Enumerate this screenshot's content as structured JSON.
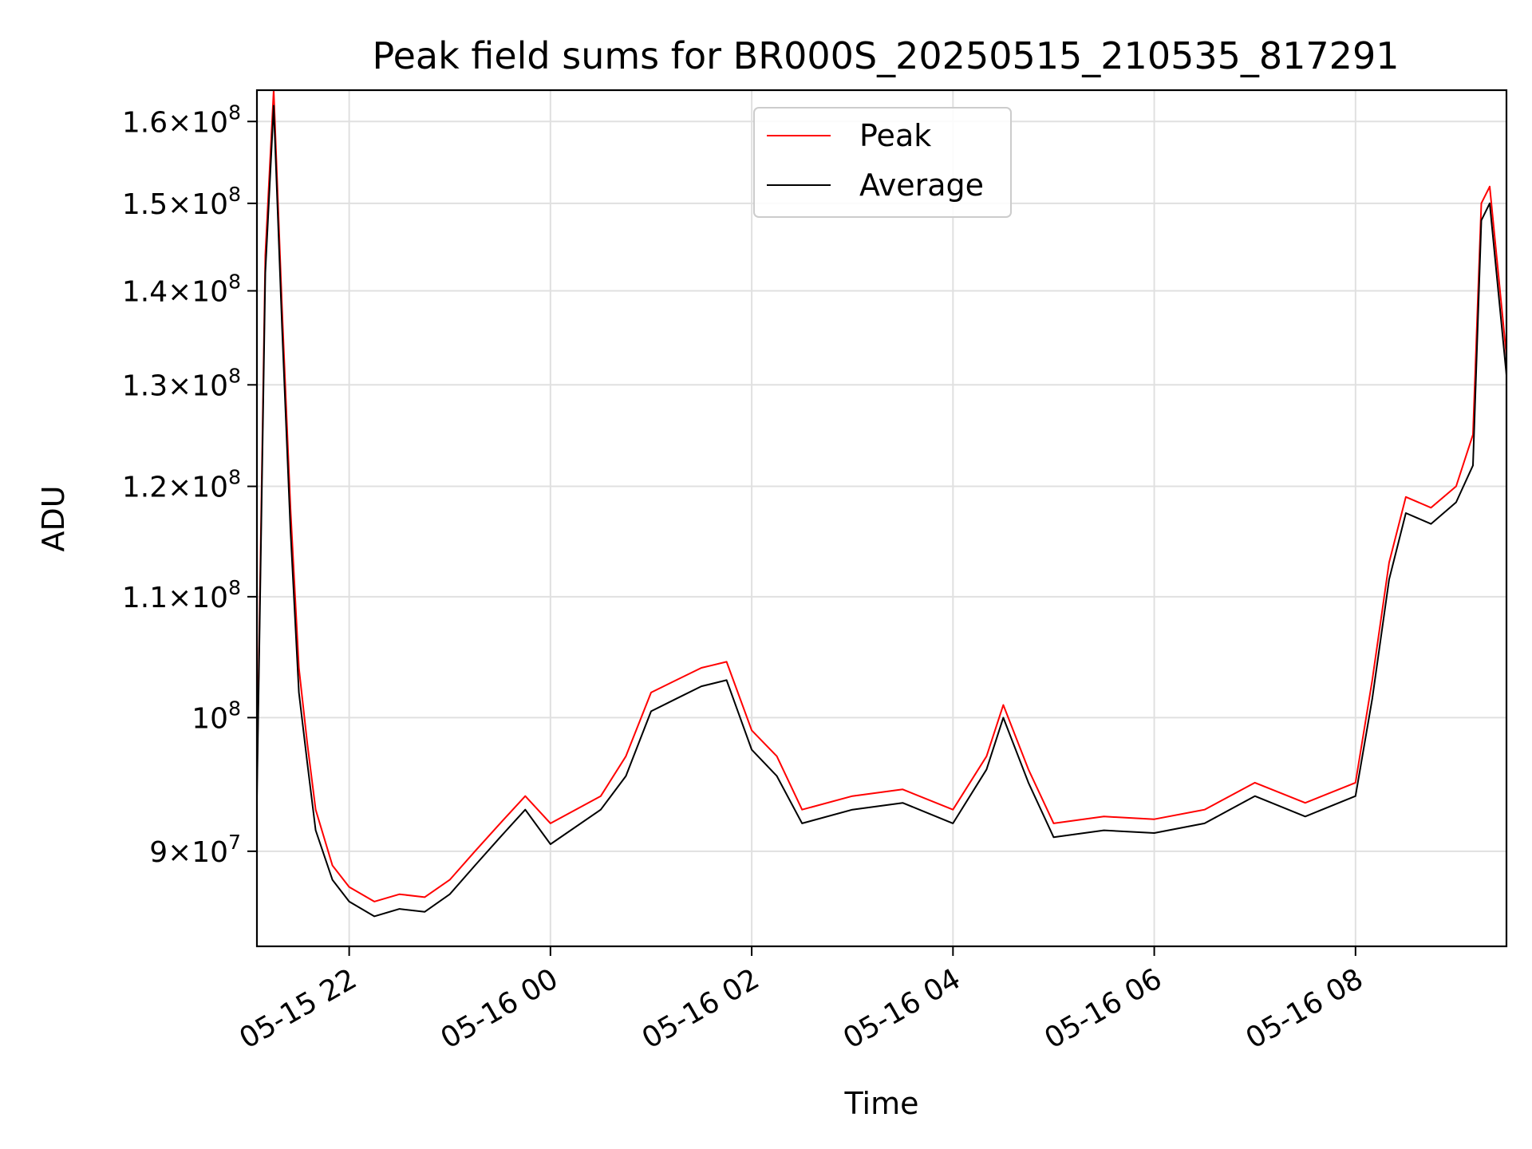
{
  "chart_data": {
    "type": "line",
    "title": "Peak field sums for BR000S_20250515_210535_817291",
    "xlabel": "Time",
    "ylabel": "ADU",
    "y_scale": "log",
    "ylim": [
      83500000,
      164000000
    ],
    "xlim": [
      "2025-05-15 21:05",
      "2025-05-16 09:30"
    ],
    "grid": true,
    "legend_position": "upper center",
    "x_ticks": [
      {
        "value": "2025-05-15 22:00",
        "label": "05-15 22"
      },
      {
        "value": "2025-05-16 00:00",
        "label": "05-16 00"
      },
      {
        "value": "2025-05-16 02:00",
        "label": "05-16 02"
      },
      {
        "value": "2025-05-16 04:00",
        "label": "05-16 04"
      },
      {
        "value": "2025-05-16 06:00",
        "label": "05-16 06"
      },
      {
        "value": "2025-05-16 08:00",
        "label": "05-16 08"
      }
    ],
    "y_ticks": [
      {
        "value": 90000000,
        "mantissa": "9",
        "exp": "7"
      },
      {
        "value": 100000000,
        "mantissa": "",
        "exp": "8"
      },
      {
        "value": 110000000,
        "mantissa": "1.1",
        "exp": "8"
      },
      {
        "value": 120000000,
        "mantissa": "1.2",
        "exp": "8"
      },
      {
        "value": 130000000,
        "mantissa": "1.3",
        "exp": "8"
      },
      {
        "value": 140000000,
        "mantissa": "1.4",
        "exp": "8"
      },
      {
        "value": 150000000,
        "mantissa": "1.5",
        "exp": "8"
      },
      {
        "value": 160000000,
        "mantissa": "1.6",
        "exp": "8"
      }
    ],
    "series": [
      {
        "name": "Peak",
        "color": "#ff0000",
        "x": [
          "2025-05-15 21:05",
          "2025-05-15 21:10",
          "2025-05-15 21:15",
          "2025-05-15 21:20",
          "2025-05-15 21:25",
          "2025-05-15 21:30",
          "2025-05-15 21:35",
          "2025-05-15 21:40",
          "2025-05-15 21:50",
          "2025-05-15 22:00",
          "2025-05-15 22:15",
          "2025-05-15 22:30",
          "2025-05-15 22:45",
          "2025-05-15 23:00",
          "2025-05-15 23:15",
          "2025-05-15 23:30",
          "2025-05-15 23:45",
          "2025-05-16 00:00",
          "2025-05-16 00:30",
          "2025-05-16 00:45",
          "2025-05-16 01:00",
          "2025-05-16 01:15",
          "2025-05-16 01:30",
          "2025-05-16 01:45",
          "2025-05-16 02:00",
          "2025-05-16 02:15",
          "2025-05-16 02:30",
          "2025-05-16 03:00",
          "2025-05-16 03:30",
          "2025-05-16 04:00",
          "2025-05-16 04:20",
          "2025-05-16 04:30",
          "2025-05-16 04:45",
          "2025-05-16 05:00",
          "2025-05-16 05:30",
          "2025-05-16 06:00",
          "2025-05-16 06:30",
          "2025-05-16 07:00",
          "2025-05-16 07:30",
          "2025-05-16 08:00",
          "2025-05-16 08:10",
          "2025-05-16 08:20",
          "2025-05-16 08:30",
          "2025-05-16 08:45",
          "2025-05-16 09:00",
          "2025-05-16 09:10",
          "2025-05-16 09:15",
          "2025-05-16 09:20",
          "2025-05-16 09:30"
        ],
        "y": [
          95000000,
          144000000,
          164000000,
          138000000,
          118000000,
          104000000,
          98000000,
          93000000,
          89000000,
          87500000,
          86500000,
          87000000,
          86800000,
          88000000,
          90000000,
          92000000,
          94000000,
          92000000,
          94000000,
          97000000,
          102000000,
          103000000,
          104000000,
          104500000,
          99000000,
          97000000,
          93000000,
          94000000,
          94500000,
          93000000,
          97000000,
          101000000,
          96000000,
          92000000,
          92500000,
          92300000,
          93000000,
          95000000,
          93500000,
          95000000,
          103000000,
          113000000,
          119000000,
          118000000,
          120000000,
          125000000,
          150000000,
          152000000,
          133000000
        ]
      },
      {
        "name": "Average",
        "color": "#000000",
        "x": [
          "2025-05-15 21:05",
          "2025-05-15 21:10",
          "2025-05-15 21:15",
          "2025-05-15 21:20",
          "2025-05-15 21:25",
          "2025-05-15 21:30",
          "2025-05-15 21:35",
          "2025-05-15 21:40",
          "2025-05-15 21:50",
          "2025-05-15 22:00",
          "2025-05-15 22:15",
          "2025-05-15 22:30",
          "2025-05-15 22:45",
          "2025-05-15 23:00",
          "2025-05-15 23:15",
          "2025-05-15 23:30",
          "2025-05-15 23:45",
          "2025-05-16 00:00",
          "2025-05-16 00:30",
          "2025-05-16 00:45",
          "2025-05-16 01:00",
          "2025-05-16 01:15",
          "2025-05-16 01:30",
          "2025-05-16 01:45",
          "2025-05-16 02:00",
          "2025-05-16 02:15",
          "2025-05-16 02:30",
          "2025-05-16 03:00",
          "2025-05-16 03:30",
          "2025-05-16 04:00",
          "2025-05-16 04:20",
          "2025-05-16 04:30",
          "2025-05-16 04:45",
          "2025-05-16 05:00",
          "2025-05-16 05:30",
          "2025-05-16 06:00",
          "2025-05-16 06:30",
          "2025-05-16 07:00",
          "2025-05-16 07:30",
          "2025-05-16 08:00",
          "2025-05-16 08:10",
          "2025-05-16 08:20",
          "2025-05-16 08:30",
          "2025-05-16 08:45",
          "2025-05-16 09:00",
          "2025-05-16 09:10",
          "2025-05-16 09:15",
          "2025-05-16 09:20",
          "2025-05-16 09:30"
        ],
        "y": [
          94000000,
          142000000,
          162000000,
          136000000,
          116000000,
          102000000,
          96500000,
          91500000,
          88000000,
          86500000,
          85500000,
          86000000,
          85800000,
          87000000,
          89000000,
          91000000,
          93000000,
          90500000,
          93000000,
          95500000,
          100500000,
          101500000,
          102500000,
          103000000,
          97500000,
          95500000,
          92000000,
          93000000,
          93500000,
          92000000,
          96000000,
          100000000,
          95000000,
          91000000,
          91500000,
          91300000,
          92000000,
          94000000,
          92500000,
          94000000,
          101500000,
          111500000,
          117500000,
          116500000,
          118500000,
          122000000,
          148000000,
          150000000,
          131000000
        ]
      }
    ]
  }
}
